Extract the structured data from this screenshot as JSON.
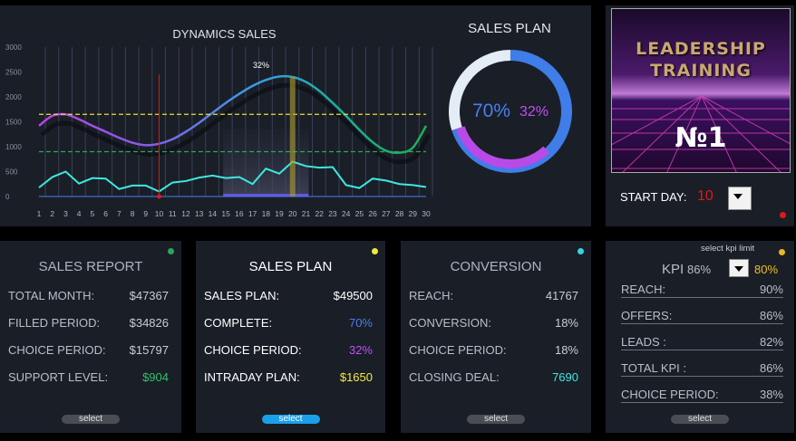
{
  "chart_data": [
    {
      "type": "line",
      "title": "DYNAMICS SALES",
      "x": [
        1,
        2,
        3,
        4,
        5,
        6,
        7,
        8,
        9,
        10,
        11,
        12,
        13,
        14,
        15,
        16,
        17,
        18,
        19,
        20,
        21,
        22,
        23,
        24,
        25,
        26,
        27,
        28,
        29,
        30
      ],
      "ylim": [
        0,
        3000
      ],
      "yticks": [
        0,
        500,
        1000,
        1500,
        2000,
        2500,
        3000
      ],
      "series": [
        {
          "values": [
            1420,
            1620,
            1650,
            1550,
            1420,
            1300,
            1180,
            1080,
            1030,
            1060,
            1150,
            1300,
            1480,
            1680,
            1880,
            2060,
            2220,
            2340,
            2410,
            2400,
            2300,
            2120,
            1880,
            1620,
            1340,
            1090,
            920,
            880,
            980,
            1420
          ],
          "color": "gradient purple-blue-green"
        },
        {
          "values": [
            180,
            390,
            500,
            260,
            370,
            360,
            150,
            220,
            220,
            100,
            280,
            310,
            380,
            420,
            370,
            390,
            250,
            560,
            460,
            700,
            610,
            580,
            590,
            230,
            170,
            360,
            320,
            250,
            230,
            190
          ],
          "color": "#3ee8e0"
        }
      ],
      "reference_lines": [
        {
          "y": 1650,
          "color": "#e8e03a",
          "style": "dashed"
        },
        {
          "y": 900,
          "color": "#2fa85a",
          "style": "dashed"
        }
      ],
      "start_day_marker": 10,
      "highlight_range": [
        15,
        21
      ],
      "current_day": 20,
      "annotation": "32%",
      "grid": "vertical"
    },
    {
      "type": "pie",
      "title": "SALES PLAN",
      "values": [
        70,
        30
      ],
      "inner_value": 32,
      "labels": [
        "70%",
        "32%"
      ],
      "colors": [
        "#3f7de8",
        "#e4ecf6",
        "#b84ae8"
      ]
    }
  ],
  "image": {
    "text": "LEADERSHIP TRAINING №1"
  },
  "start_day": {
    "label": "START DAY:",
    "value": "10"
  },
  "cards": [
    {
      "title": "SALES REPORT",
      "dot": "#27a85a",
      "rows": [
        [
          "TOTAL MONTH:",
          "$47367",
          "#c8ccd4"
        ],
        [
          "FILLED PERIOD:",
          "$34826",
          "#c8ccd4"
        ],
        [
          "CHOICE PERIOD:",
          "$15797",
          "#c8ccd4"
        ],
        [
          "SUPPORT LEVEL:",
          "$904",
          "#2ec46a"
        ]
      ],
      "button": "select"
    },
    {
      "title": "SALES PLAN",
      "dot": "#f0e83a",
      "rows": [
        [
          "SALES PLAN:",
          "$49500",
          "#ffffff"
        ],
        [
          "COMPLETE:",
          "70%",
          "#4a7ff0"
        ],
        [
          "CHOICE PERIOD:",
          "32%",
          "#c050f0"
        ],
        [
          "INTRADAY PLAN:",
          "$1650",
          "#f2ea3a"
        ]
      ],
      "button": "select"
    },
    {
      "title": "CONVERSION",
      "dot": "#2fd8e0",
      "rows": [
        [
          "REACH:",
          "41767",
          "#c8ccd4"
        ],
        [
          "CONVERSION:",
          "18%",
          "#c8ccd4"
        ],
        [
          "CHOICE PERIOD:",
          "18%",
          "#c8ccd4"
        ],
        [
          "CLOSING DEAL:",
          "7690",
          "#3ee8e0"
        ]
      ],
      "button": "select"
    }
  ],
  "kpi": {
    "hint": "select kpi limit",
    "label": "KPI",
    "value": "86%",
    "limit": "80%",
    "dot": "#e8b820",
    "rows": [
      [
        "REACH:",
        "90%"
      ],
      [
        "OFFERS:",
        "86%"
      ],
      [
        "LEADS :",
        "82%"
      ],
      [
        "TOTAL KPI :",
        "86%"
      ],
      [
        "CHOICE PERIOD:",
        "38%"
      ]
    ],
    "button": "select"
  }
}
